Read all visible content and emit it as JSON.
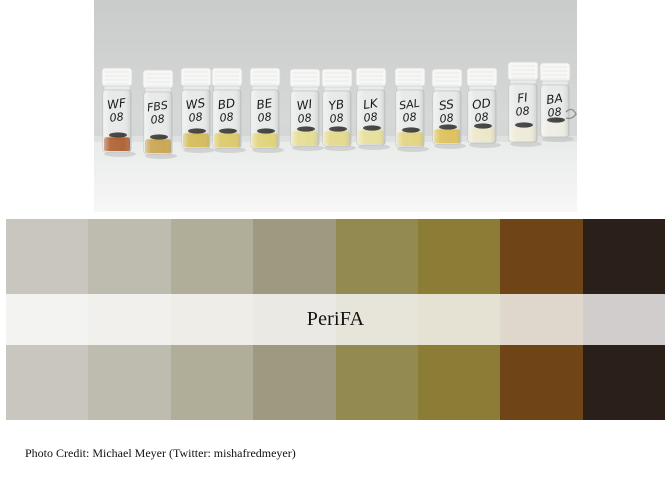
{
  "photo": {
    "vials": [
      {
        "label1": "WF",
        "label2": "08",
        "liquid": "#a44d18"
      },
      {
        "label1": "FBS",
        "label2": "08",
        "liquid": "#c29a3a"
      },
      {
        "label1": "WS",
        "label2": "08",
        "liquid": "#d0b243"
      },
      {
        "label1": "BD",
        "label2": "08",
        "liquid": "#d7c356"
      },
      {
        "label1": "BE",
        "label2": "08",
        "liquid": "#dccd68"
      },
      {
        "label1": "WI",
        "label2": "08",
        "liquid": "#e2d885"
      },
      {
        "label1": "YB",
        "label2": "08",
        "liquid": "#e0d47c"
      },
      {
        "label1": "LK",
        "label2": "08",
        "liquid": "#e5db8e"
      },
      {
        "label1": "SAL",
        "label2": "08",
        "liquid": "#dfcf70"
      },
      {
        "label1": "SS",
        "label2": "08",
        "liquid": "#d9b945"
      },
      {
        "label1": "OD",
        "label2": "08",
        "liquid": "#ebe4c2"
      },
      {
        "label1": "FI",
        "label2": "08",
        "liquid": "#ede8d4"
      },
      {
        "label1": "BA",
        "label2": "08",
        "liquid": "#ecebe2"
      }
    ]
  },
  "palette": {
    "name": "PeriFA",
    "colors": [
      "#c8c6bf",
      "#bdbcaf",
      "#b0ad98",
      "#9f9982",
      "#938a51",
      "#8b7c36",
      "#6f4518",
      "#2b1f19"
    ]
  },
  "credit": {
    "text": "Photo Credit: Michael Meyer (Twitter: mishafredmeyer)"
  }
}
